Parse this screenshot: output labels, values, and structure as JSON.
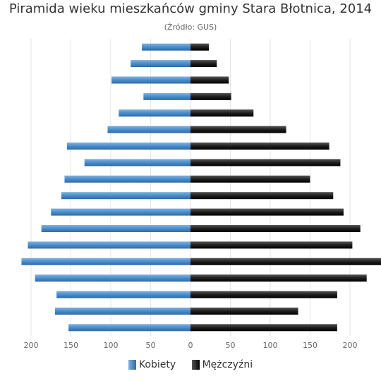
{
  "chart_data": {
    "type": "bar",
    "orientation": "horizontal",
    "layout": "population-pyramid",
    "title": "Piramida wieku mieszkańców gminy Stara Błotnica, 2014",
    "subtitle": "(Źródło: GUS)",
    "xlim": [
      -240,
      240
    ],
    "x_tick_values": [
      -200,
      -150,
      -100,
      -50,
      0,
      50,
      100,
      150,
      200
    ],
    "x_tick_labels": [
      "200",
      "150",
      "100",
      "50",
      "0",
      "50",
      "100",
      "150",
      "200"
    ],
    "grid": true,
    "legend_position": "bottom",
    "series": [
      {
        "name": "Kobiety",
        "color": "#4a8ccc",
        "values": [
          61,
          75,
          99,
          59,
          90,
          104,
          155,
          133,
          158,
          162,
          175,
          187,
          204,
          212,
          195,
          168,
          170,
          153
        ]
      },
      {
        "name": "Mężczyźni",
        "color": "#222222",
        "values": [
          23,
          33,
          48,
          51,
          79,
          120,
          174,
          188,
          150,
          179,
          192,
          213,
          203,
          240,
          221,
          184,
          135,
          184
        ]
      }
    ]
  }
}
